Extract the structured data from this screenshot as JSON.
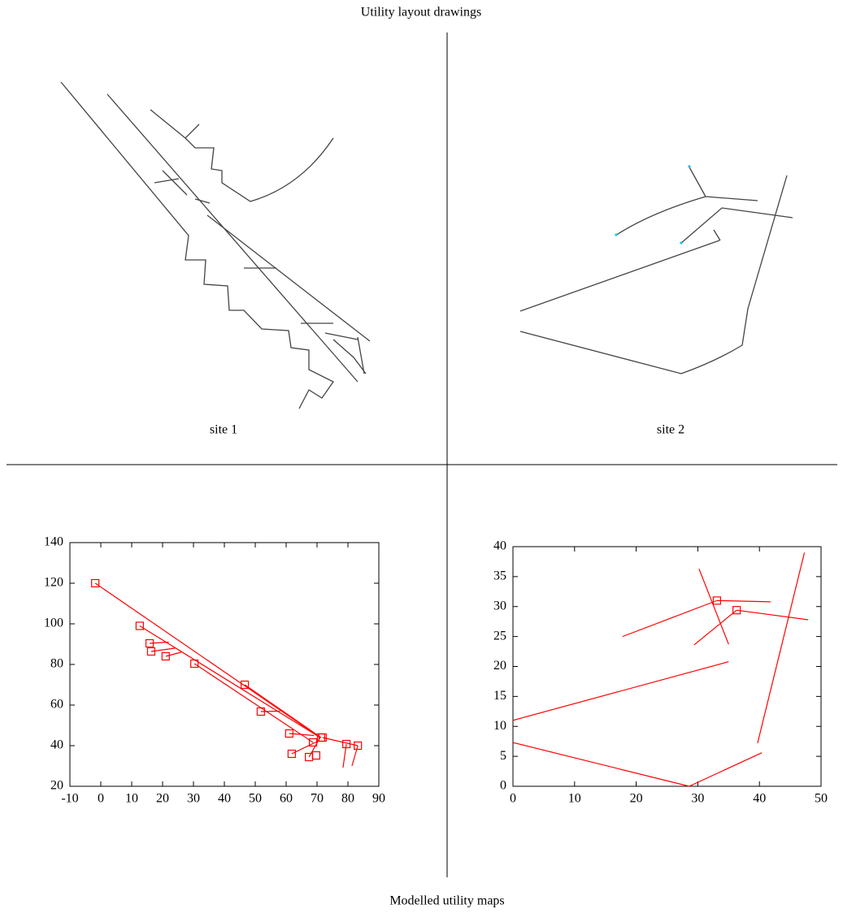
{
  "title": "Utility layout drawings",
  "footer": "Modelled utility maps",
  "drawings": [
    {
      "label": "site 1"
    },
    {
      "label": "site 2"
    }
  ],
  "chart_data": [
    {
      "type": "network",
      "color": "#ff0000",
      "xlim": [
        -10,
        90
      ],
      "xticks": [
        -10,
        0,
        10,
        20,
        30,
        40,
        50,
        60,
        70,
        80,
        90
      ],
      "ylim": [
        20,
        140
      ],
      "yticks": [
        20,
        40,
        60,
        80,
        100,
        120,
        140
      ],
      "x": [
        -1.8,
        12.6,
        15.8,
        16.3,
        21,
        30.3,
        46.6,
        51.8,
        61,
        61.8,
        67.4,
        68.7,
        69.7,
        71.3,
        71.8,
        79.5,
        83.2
      ],
      "y": [
        120,
        99,
        90.4,
        86.4,
        84,
        80.4,
        70,
        56.8,
        46,
        36,
        34.4,
        41.6,
        35.2,
        44,
        44,
        40.8,
        40
      ],
      "segments": [
        [
          -1.8,
          120,
          71,
          44
        ],
        [
          12.6,
          99,
          71,
          44
        ],
        [
          15.8,
          90.4,
          22,
          91
        ],
        [
          16.3,
          86.4,
          24,
          88
        ],
        [
          21,
          84,
          26,
          86
        ],
        [
          30.3,
          80.4,
          68.7,
          41.6
        ],
        [
          46.6,
          70,
          71.3,
          44
        ],
        [
          51.8,
          56.8,
          58,
          57
        ],
        [
          61,
          46,
          69,
          45
        ],
        [
          61.8,
          36,
          70,
          42
        ],
        [
          67.4,
          34.4,
          71,
          44
        ],
        [
          71.8,
          44,
          83.2,
          40
        ],
        [
          79.5,
          40.8,
          78.4,
          29.2
        ],
        [
          83.2,
          40,
          81.3,
          30
        ]
      ]
    },
    {
      "type": "network",
      "color": "#ff0000",
      "xlim": [
        0,
        50
      ],
      "xticks": [
        0,
        10,
        20,
        30,
        40,
        50
      ],
      "ylim": [
        0,
        40
      ],
      "yticks": [
        0,
        5,
        10,
        15,
        20,
        25,
        30,
        35,
        40
      ],
      "x": [
        33.1,
        36.3
      ],
      "y": [
        31,
        29.4
      ],
      "segments": [
        [
          0,
          11,
          35,
          20.8
        ],
        [
          0,
          7.3,
          28.6,
          0
        ],
        [
          28.6,
          0,
          40.4,
          5.6
        ],
        [
          39.7,
          7.2,
          47.3,
          39
        ],
        [
          17.8,
          25,
          33.1,
          31
        ],
        [
          33.1,
          31,
          41.8,
          30.8
        ],
        [
          30.2,
          36.3,
          35,
          23.7
        ],
        [
          29.4,
          23.6,
          36.3,
          29.4
        ],
        [
          36.3,
          29.4,
          47.9,
          27.8
        ]
      ]
    }
  ]
}
